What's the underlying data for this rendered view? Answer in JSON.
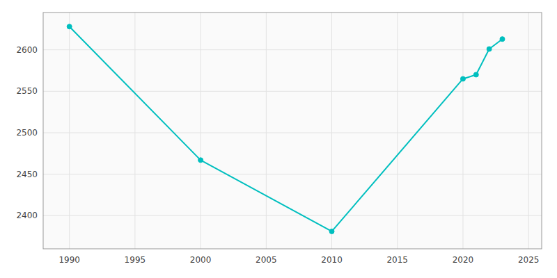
{
  "chart_data": {
    "type": "line",
    "x": [
      1990,
      2000,
      2010,
      2020,
      2021,
      2022,
      2023
    ],
    "values": [
      2628,
      2467,
      2381,
      2565,
      2570,
      2601,
      2613
    ],
    "color": "#00BFBF",
    "marker": "circle",
    "xlim": [
      1988,
      2026
    ],
    "ylim": [
      2360,
      2645
    ],
    "xticks": [
      1990,
      1995,
      2000,
      2005,
      2010,
      2015,
      2020,
      2025
    ],
    "yticks": [
      2400,
      2450,
      2500,
      2550,
      2600
    ],
    "grid": true
  }
}
